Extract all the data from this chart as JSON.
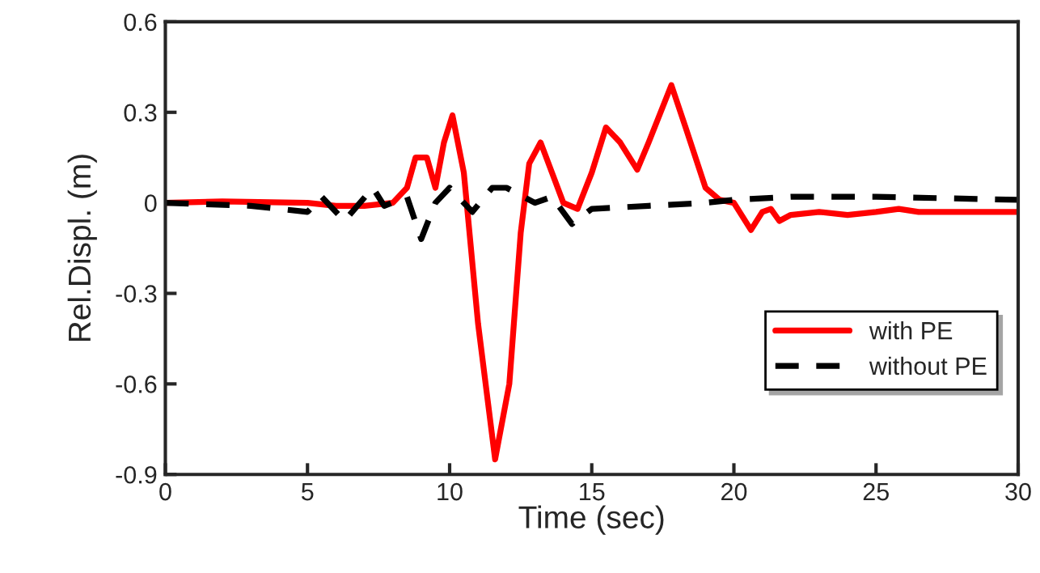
{
  "chart_data": {
    "type": "line",
    "xlabel": "Time (sec)",
    "ylabel": "Rel.Displ. (m)",
    "xlim": [
      0,
      30
    ],
    "ylim": [
      -0.9,
      0.6
    ],
    "xticks": [
      0,
      5,
      10,
      15,
      20,
      25,
      30
    ],
    "yticks": [
      -0.9,
      -0.6,
      -0.3,
      0,
      0.3,
      0.6
    ],
    "grid": false,
    "legend": "bottom right",
    "marker": "none",
    "series": [
      {
        "name": "with PE",
        "color": "#ff0000",
        "line_style": "solid",
        "x": [
          0,
          2,
          5,
          6,
          7,
          8,
          8.5,
          8.8,
          9.2,
          9.5,
          9.8,
          10.1,
          10.5,
          11,
          11.6,
          12.1,
          12.5,
          12.8,
          13.2,
          13.6,
          14,
          14.5,
          15,
          15.5,
          16,
          16.6,
          17,
          17.8,
          18.3,
          19,
          19.5,
          20,
          20.6,
          21,
          21.3,
          21.6,
          22,
          23,
          24,
          25,
          25.8,
          26.5,
          28,
          30
        ],
        "values": [
          0,
          0.005,
          0,
          -0.01,
          -0.01,
          0,
          0.05,
          0.15,
          0.15,
          0.05,
          0.2,
          0.29,
          0.1,
          -0.4,
          -0.85,
          -0.6,
          -0.1,
          0.13,
          0.2,
          0.1,
          0.0,
          -0.02,
          0.1,
          0.25,
          0.2,
          0.11,
          0.2,
          0.39,
          0.25,
          0.05,
          0.01,
          0.0,
          -0.09,
          -0.03,
          -0.02,
          -0.06,
          -0.04,
          -0.03,
          -0.04,
          -0.03,
          -0.02,
          -0.03,
          -0.03,
          -0.03
        ]
      },
      {
        "name": "without PE",
        "color": "#000000",
        "line_style": "dashed",
        "x": [
          0,
          3,
          5,
          5.5,
          6.3,
          7.3,
          7.7,
          8.5,
          9,
          9.5,
          10,
          10.8,
          11.5,
          12,
          13,
          13.6,
          14.3,
          15,
          17,
          19,
          20,
          22,
          25,
          30
        ],
        "values": [
          0,
          -0.01,
          -0.03,
          0.02,
          -0.06,
          0.05,
          -0.01,
          0.02,
          -0.12,
          0.0,
          0.05,
          -0.03,
          0.05,
          0.05,
          0.0,
          0.02,
          -0.07,
          -0.02,
          -0.01,
          0.0,
          0.01,
          0.02,
          0.02,
          0.01
        ]
      }
    ]
  }
}
